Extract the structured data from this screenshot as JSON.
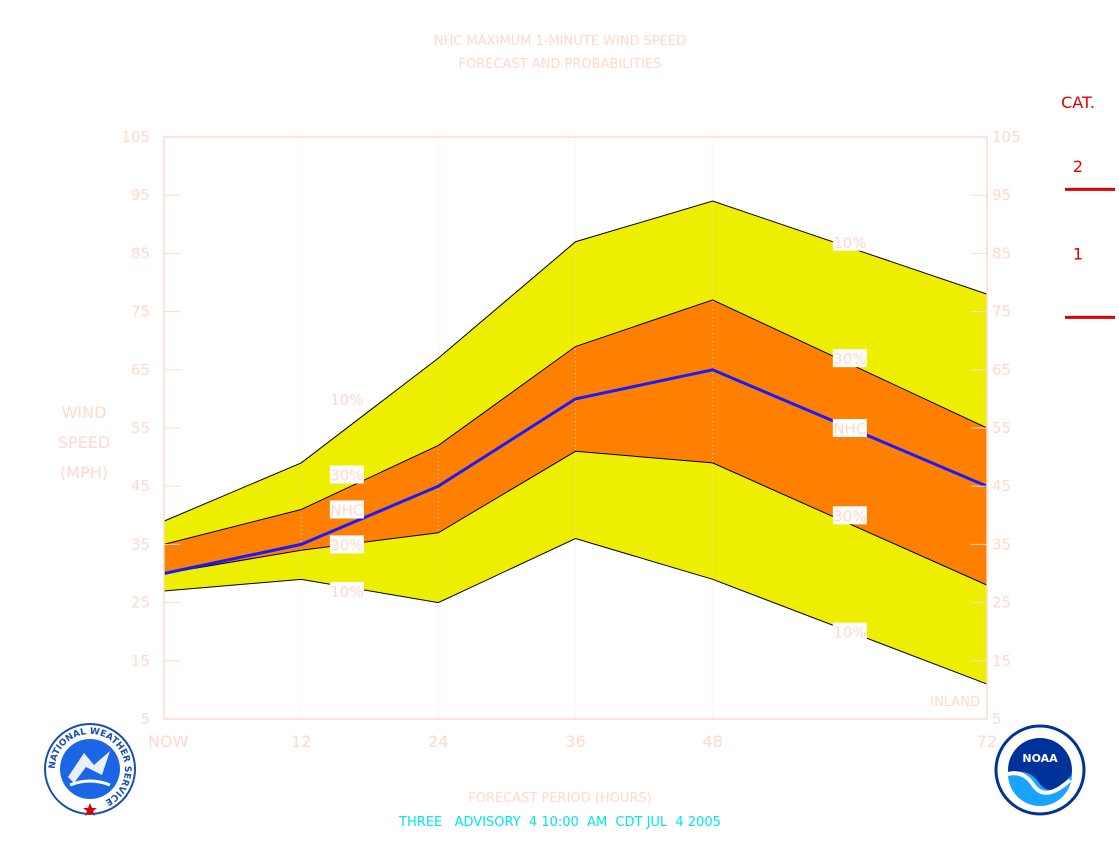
{
  "chart_data": {
    "type": "area",
    "title": "NHC MAXIMUM 1-MINUTE WIND SPEED",
    "subtitle": "FORECAST AND PROBABILITIES",
    "ylabel_lines": [
      "WIND",
      "SPEED",
      "(MPH)"
    ],
    "xlabel": "FORECAST PERIOD (HOURS)",
    "xlim": [
      0,
      72
    ],
    "ylim": [
      5,
      105
    ],
    "x_ticks": [
      {
        "value": 0,
        "label": "NOW"
      },
      {
        "value": 12,
        "label": "12"
      },
      {
        "value": 24,
        "label": "24"
      },
      {
        "value": 36,
        "label": "36"
      },
      {
        "value": 48,
        "label": "48"
      },
      {
        "value": 72,
        "label": "72"
      }
    ],
    "y_ticks": [
      {
        "value": 105,
        "label": "105"
      },
      {
        "value": 95,
        "label": "95"
      },
      {
        "value": 85,
        "label": "85"
      },
      {
        "value": 75,
        "label": "75"
      },
      {
        "value": 65,
        "label": "65"
      },
      {
        "value": 55,
        "label": "55"
      },
      {
        "value": 45,
        "label": "45"
      },
      {
        "value": 35,
        "label": "35"
      },
      {
        "value": 25,
        "label": "25"
      },
      {
        "value": 15,
        "label": "15"
      },
      {
        "value": 5,
        "label": "5"
      }
    ],
    "x": [
      0,
      12,
      24,
      36,
      48,
      72
    ],
    "series": [
      {
        "name": "10%",
        "role": "upper",
        "values": [
          39,
          49,
          67,
          87,
          94,
          78
        ]
      },
      {
        "name": "30%",
        "role": "upper",
        "values": [
          35,
          41,
          52,
          69,
          77,
          55
        ]
      },
      {
        "name": "NHC",
        "role": "forecast",
        "values": [
          30,
          35,
          45,
          60,
          65,
          45
        ]
      },
      {
        "name": "30%",
        "role": "lower",
        "values": [
          30,
          34,
          37,
          51,
          49,
          28
        ]
      },
      {
        "name": "10%",
        "role": "lower",
        "values": [
          27,
          29,
          25,
          36,
          29,
          11
        ]
      }
    ],
    "curve_labels": [
      {
        "text": "10%",
        "x": 16,
        "y": 60,
        "series": 0
      },
      {
        "text": "30%",
        "x": 16,
        "y": 47,
        "series": 1
      },
      {
        "text": "NHC",
        "x": 16,
        "y": 41,
        "series": 2
      },
      {
        "text": "30%",
        "x": 16,
        "y": 35,
        "series": 3
      },
      {
        "text": "10%",
        "x": 16,
        "y": 27,
        "series": 4
      },
      {
        "text": "10%",
        "x": 60,
        "y": 87,
        "series": 0
      },
      {
        "text": "30%",
        "x": 60,
        "y": 67,
        "series": 1
      },
      {
        "text": "NHC",
        "x": 60,
        "y": 55,
        "series": 2
      },
      {
        "text": "30%",
        "x": 60,
        "y": 40,
        "series": 3
      },
      {
        "text": "10%",
        "x": 60,
        "y": 20,
        "series": 4
      }
    ],
    "grid": "vertical-dotted",
    "colors": {
      "outer_band": "#eeee00",
      "inner_band": "#ff8000",
      "forecast_line": "#1a1aff",
      "labels": "#ffd9cc",
      "category": "#dd0000",
      "advisory": "#00e5ee"
    },
    "inland_label": "INLAND",
    "category_scale": {
      "title": "CAT.",
      "thresholds": [
        96,
        74
      ],
      "labels": [
        {
          "text": "2",
          "y": 100
        },
        {
          "text": "1",
          "y": 85
        }
      ]
    }
  },
  "footer": {
    "advisory": "THREE   ADVISORY  4 10:00  AM  CDT JUL  4 2005"
  },
  "logos": {
    "left": {
      "name": "nws-logo",
      "text": "NATIONAL WEATHER SERVICE"
    },
    "right": {
      "name": "noaa-logo",
      "text": "NOAA"
    }
  }
}
